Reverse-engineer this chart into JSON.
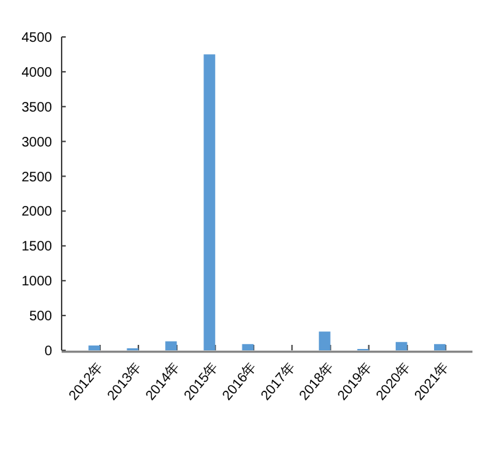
{
  "chart_data": {
    "type": "bar",
    "categories": [
      "2012年",
      "2013年",
      "2014年",
      "2015年",
      "2016年",
      "2017年",
      "2018年",
      "2019年",
      "2020年",
      "2021年"
    ],
    "values": [
      70,
      30,
      130,
      4250,
      90,
      null,
      270,
      20,
      120,
      90
    ],
    "color": "#5b9bd5",
    "ylim": [
      0,
      4500
    ],
    "yticks": [
      0,
      500,
      1000,
      1500,
      2000,
      2500,
      3000,
      3500,
      4000,
      4500
    ],
    "grid": false
  }
}
